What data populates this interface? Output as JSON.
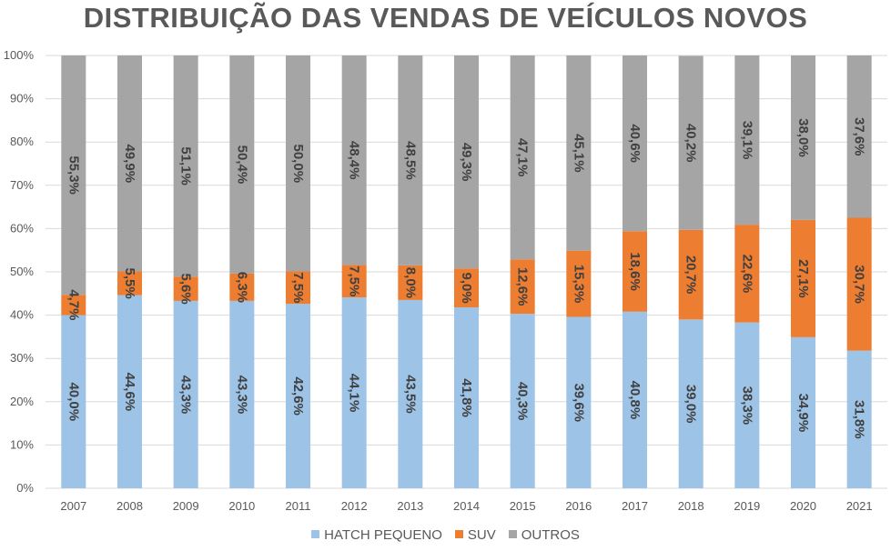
{
  "chart_data": {
    "type": "bar",
    "stacked": "percent",
    "title": "DISTRIBUIÇÃO DAS VENDAS DE VEÍCULOS NOVOS",
    "xlabel": "",
    "ylabel": "",
    "ylim": [
      0,
      100
    ],
    "ytick_labels": [
      "0%",
      "10%",
      "20%",
      "30%",
      "40%",
      "50%",
      "60%",
      "70%",
      "80%",
      "90%",
      "100%"
    ],
    "grid": true,
    "legend_position": "bottom",
    "categories": [
      "2007",
      "2008",
      "2009",
      "2010",
      "2011",
      "2012",
      "2013",
      "2014",
      "2015",
      "2016",
      "2017",
      "2018",
      "2019",
      "2020",
      "2021"
    ],
    "series": [
      {
        "name": "HATCH PEQUENO",
        "color": "#9DC3E6",
        "values": [
          40.0,
          44.6,
          43.3,
          43.3,
          42.6,
          44.1,
          43.5,
          41.8,
          40.3,
          39.6,
          40.8,
          39.0,
          38.3,
          34.9,
          31.8
        ],
        "labels": [
          "40,0%",
          "44,6%",
          "43,3%",
          "43,3%",
          "42,6%",
          "44,1%",
          "43,5%",
          "41,8%",
          "40,3%",
          "39,6%",
          "40,8%",
          "39,0%",
          "38,3%",
          "34,9%",
          "31,8%"
        ]
      },
      {
        "name": "SUV",
        "color": "#ED7D31",
        "values": [
          4.7,
          5.5,
          5.6,
          6.3,
          7.5,
          7.5,
          8.0,
          9.0,
          12.6,
          15.3,
          18.6,
          20.7,
          22.6,
          27.1,
          30.7
        ],
        "labels": [
          "4,7%",
          "5,5%",
          "5,6%",
          "6,3%",
          "7,5%",
          "7,5%",
          "8,0%",
          "9,0%",
          "12,6%",
          "15,3%",
          "18,6%",
          "20,7%",
          "22,6%",
          "27,1%",
          "30,7%"
        ]
      },
      {
        "name": "OUTROS",
        "color": "#A5A5A5",
        "values": [
          55.3,
          49.9,
          51.1,
          50.4,
          50.0,
          48.4,
          48.5,
          49.3,
          47.1,
          45.1,
          40.6,
          40.2,
          39.1,
          38.0,
          37.6
        ],
        "labels": [
          "55,3%",
          "49,9%",
          "51,1%",
          "50,4%",
          "50,0%",
          "48,4%",
          "48,5%",
          "49,3%",
          "47,1%",
          "45,1%",
          "40,6%",
          "40,2%",
          "39,1%",
          "38,0%",
          "37,6%"
        ]
      }
    ]
  }
}
